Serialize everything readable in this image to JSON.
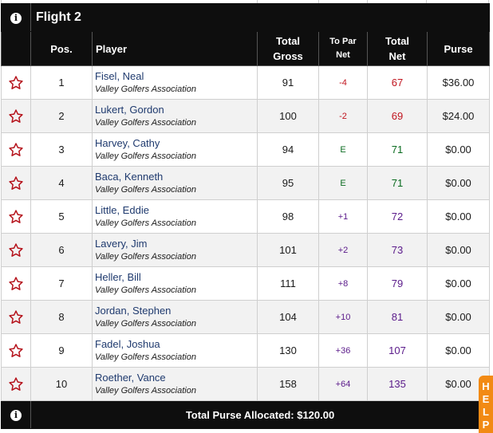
{
  "flight": {
    "title": "Flight 2"
  },
  "headers": {
    "pos": "Pos.",
    "player": "Player",
    "total_gross_1": "Total",
    "total_gross_2": "Gross",
    "to_par_1": "To Par",
    "to_par_2": "Net",
    "total_net_1": "Total",
    "total_net_2": "Net",
    "purse": "Purse"
  },
  "rows": [
    {
      "pos": "1",
      "name": "Fisel, Neal",
      "assoc": "Valley Golfers Association",
      "gross": "91",
      "to_par": "-4",
      "net": "67",
      "purse": "$36.00"
    },
    {
      "pos": "2",
      "name": "Lukert, Gordon",
      "assoc": "Valley Golfers Association",
      "gross": "100",
      "to_par": "-2",
      "net": "69",
      "purse": "$24.00"
    },
    {
      "pos": "3",
      "name": "Harvey, Cathy",
      "assoc": "Valley Golfers Association",
      "gross": "94",
      "to_par": "E",
      "net": "71",
      "purse": "$0.00"
    },
    {
      "pos": "4",
      "name": "Baca, Kenneth",
      "assoc": "Valley Golfers Association",
      "gross": "95",
      "to_par": "E",
      "net": "71",
      "purse": "$0.00"
    },
    {
      "pos": "5",
      "name": "Little, Eddie",
      "assoc": "Valley Golfers Association",
      "gross": "98",
      "to_par": "+1",
      "net": "72",
      "purse": "$0.00"
    },
    {
      "pos": "6",
      "name": "Lavery, Jim",
      "assoc": "Valley Golfers Association",
      "gross": "101",
      "to_par": "+2",
      "net": "73",
      "purse": "$0.00"
    },
    {
      "pos": "7",
      "name": "Heller, Bill",
      "assoc": "Valley Golfers Association",
      "gross": "111",
      "to_par": "+8",
      "net": "79",
      "purse": "$0.00"
    },
    {
      "pos": "8",
      "name": "Jordan, Stephen",
      "assoc": "Valley Golfers Association",
      "gross": "104",
      "to_par": "+10",
      "net": "81",
      "purse": "$0.00"
    },
    {
      "pos": "9",
      "name": "Fadel, Joshua",
      "assoc": "Valley Golfers Association",
      "gross": "130",
      "to_par": "+36",
      "net": "107",
      "purse": "$0.00"
    },
    {
      "pos": "10",
      "name": "Roether, Vance",
      "assoc": "Valley Golfers Association",
      "gross": "158",
      "to_par": "+64",
      "net": "135",
      "purse": "$0.00"
    }
  ],
  "footer": {
    "total_label": "Total Purse Allocated: $120.00"
  },
  "help_tab": {
    "label": "HELP"
  },
  "colors": {
    "under_par": "#c0141e",
    "even_par": "#0a6b1f",
    "over_par": "#5a1a8a",
    "star": "#b5121b",
    "help_tab": "#f28a14"
  },
  "icons": {
    "info": "info-circle-icon",
    "favorite": "star-outline-icon"
  }
}
